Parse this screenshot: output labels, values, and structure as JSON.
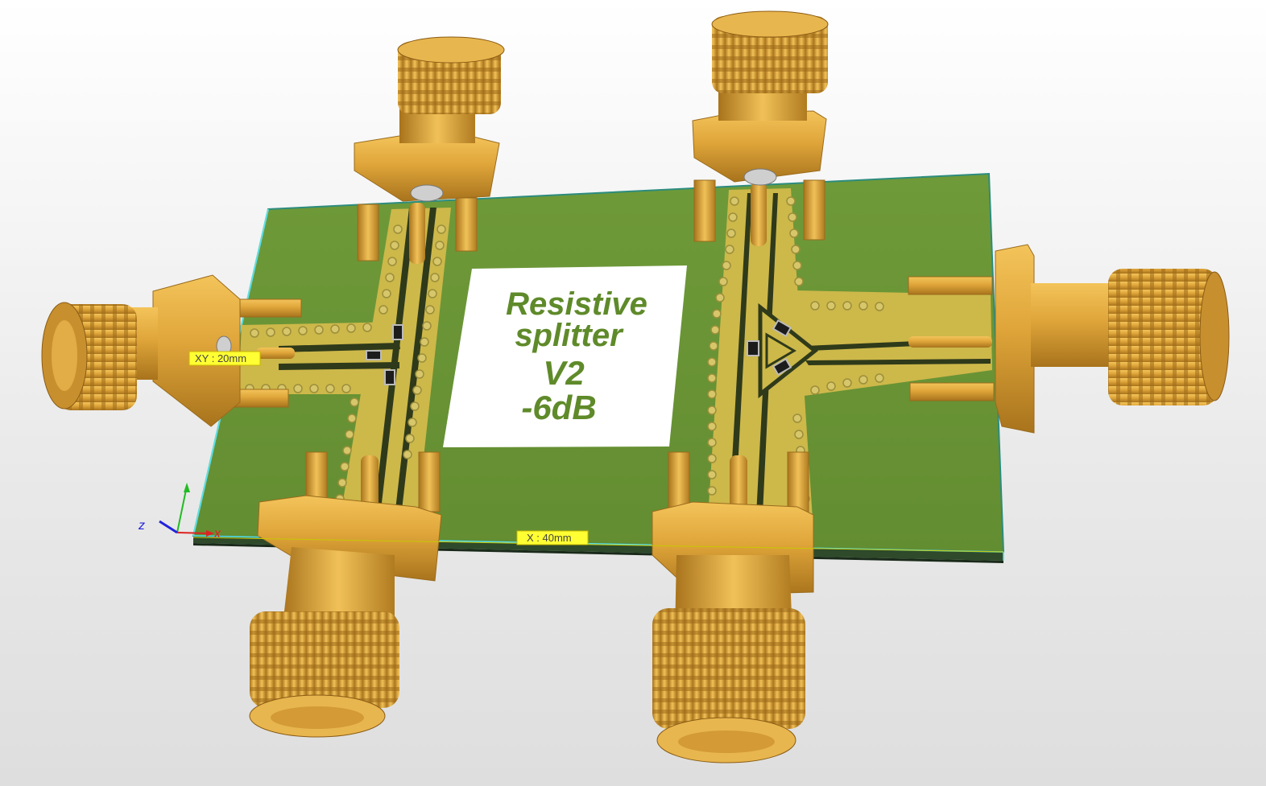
{
  "board": {
    "silkscreen_lines": [
      "Resistive",
      "splitter",
      "V2",
      "-6dB"
    ]
  },
  "dimensions": {
    "xy_label": "XY : 20mm",
    "x_label": "X : 40mm"
  },
  "axes": {
    "z_label": "z",
    "x_label": "x"
  },
  "colors": {
    "board_green": "#6a9436",
    "copper": "#cdb84a",
    "connector_gold": "#dca23a",
    "silk_text": "#5f8a2a",
    "dim_yellow": "#ffff33",
    "axis_blue": "#2222dd",
    "axis_red": "#dd2222",
    "axis_green": "#22bb22"
  },
  "connectors": [
    {
      "id": "left",
      "name": "sma-connector-left"
    },
    {
      "id": "top-left",
      "name": "sma-connector-top-left"
    },
    {
      "id": "top-right",
      "name": "sma-connector-top-right"
    },
    {
      "id": "right",
      "name": "sma-connector-right"
    },
    {
      "id": "bottom-left",
      "name": "sma-connector-bottom-left"
    },
    {
      "id": "bottom-right",
      "name": "sma-connector-bottom-right"
    }
  ]
}
